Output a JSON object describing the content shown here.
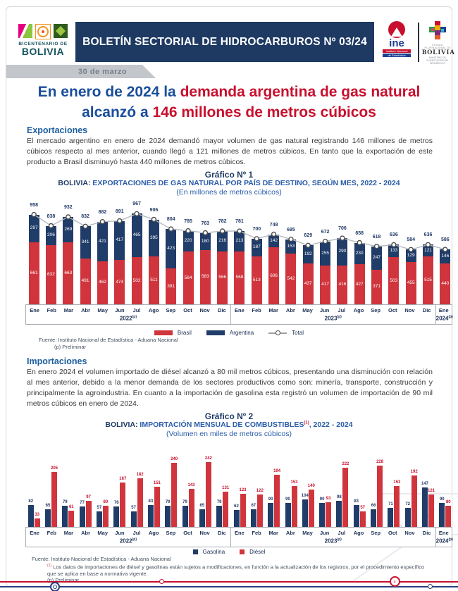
{
  "header": {
    "banner_title": "BOLETÍN SECTORIAL DE HIDROCARBUROS Nº 03/24",
    "date_ribbon": "30 de marzo",
    "bicentenario_line1": "BICENTENARIO DE",
    "bicentenario_line2": "BOLIVIA",
    "ine_name": "ine",
    "ine_sub1": "Instituto Nacional",
    "ine_sub2": "de Estadística",
    "bolivia_top": "ESTADO PLURINACIONAL DE",
    "bolivia_name": "BOLIVIA",
    "bolivia_sub": "MINISTERIO DE PLANIFICACIÓN DEL DESARROLLO"
  },
  "headline": {
    "line1_blue": "En enero de 2024 la ",
    "line1_red": "demanda argentina de gas natural",
    "line2_blue": "alcanzó a ",
    "line2_red": "146 millones de metros cúbicos"
  },
  "exportaciones": {
    "heading": "Exportaciones",
    "body": "El mercado argentino en enero de 2024 demandó mayor volumen de gas natural registrando 146 millones de metros cúbicos respecto al mes anterior, cuando llegó a 121 millones de metros cúbicos. En tanto que la exportación de este producto a Brasil disminuyó hasta 440 millones de metros cúbicos."
  },
  "importaciones": {
    "heading": "Importaciones",
    "body": "En enero 2024 el volumen importado de diésel alcanzó a 80 mil metros cúbicos, presentando una disminución con relación al mes anterior, debido a la menor demanda de los sectores productivos como son: minería, transporte, construcción y principalmente la agroindustria. En cuanto a la importación de gasolina esta registró un volumen de importación de 90 mil metros cúbicos en enero de 2024."
  },
  "colors": {
    "banner_navy": "#1e3a63",
    "bar_navy": "#203c68",
    "bar_red": "#d0353d",
    "headline_blue": "#1a4e9b",
    "headline_red": "#c8102e"
  },
  "chart_data": [
    {
      "type": "bar",
      "stacked": true,
      "title": "Gráfico Nº 1",
      "subtitle_prefix": "BOLIVIA:",
      "subtitle_rest": " EXPORTACIONES DE GAS NATURAL POR PAÍS DE DESTINO, SEGÚN MES, 2022 - 2024",
      "units": "(En millones de metros cúbicos)",
      "categories": [
        "Ene",
        "Feb",
        "Mar",
        "Abr",
        "May",
        "Jun",
        "Jul",
        "Ago",
        "Sep",
        "Oct",
        "Nov",
        "Dic",
        "Ene",
        "Feb",
        "Mar",
        "Abr",
        "May",
        "Jun",
        "Jul",
        "Ago",
        "Sep",
        "Oct",
        "Nov",
        "Dic",
        "Ene"
      ],
      "year_groups": [
        {
          "label": "2022",
          "sup": "(p)",
          "months": 12
        },
        {
          "label": "2023",
          "sup": "(p)",
          "months": 12
        },
        {
          "label": "2024",
          "sup": "(p)",
          "months": 1
        }
      ],
      "series": [
        {
          "name": "Brasil",
          "color": "#d0353d",
          "values": [
            661,
            632,
            663,
            491,
            462,
            474,
            502,
            511,
            381,
            564,
            583,
            566,
            568,
            513,
            606,
            542,
            437,
            417,
            416,
            427,
            371,
            503,
            455,
            515,
            440
          ]
        },
        {
          "name": "Argentina",
          "color": "#203c68",
          "values": [
            297,
            206,
            269,
            341,
            421,
            417,
            465,
            395,
            423,
            220,
            180,
            216,
            213,
            187,
            142,
            153,
            192,
            255,
            290,
            230,
            247,
            133,
            129,
            121,
            146
          ]
        }
      ],
      "totals": [
        958,
        838,
        932,
        832,
        882,
        891,
        967,
        906,
        804,
        785,
        763,
        782,
        781,
        700,
        748,
        695,
        629,
        672,
        706,
        658,
        618,
        636,
        584,
        636,
        586
      ],
      "total_series_name": "Total",
      "legend_position": "bottom",
      "ylim": [
        0,
        1000
      ],
      "source": "Fuente: Instituto Nacional de Estadística - Aduana Nacional",
      "source2": "(p) Preliminar"
    },
    {
      "type": "bar",
      "grouped": true,
      "title": "Gráfico Nº 2",
      "subtitle_prefix": "BOLIVIA:",
      "subtitle_rest": " IMPORTACIÓN MENSUAL DE COMBUSTIBLES",
      "subtitle_sup": "(1)",
      "subtitle_tail": ", 2022 - 2024",
      "units": "(Volumen en miles de metros cúbicos)",
      "categories": [
        "Ene",
        "Feb",
        "Mar",
        "Abr",
        "May",
        "Jun",
        "Jul",
        "Ago",
        "Sep",
        "Oct",
        "Nov",
        "Dic",
        "Ene",
        "Feb",
        "Mar",
        "Abr",
        "May",
        "Jun",
        "Jul",
        "Ago",
        "Sep",
        "Oct",
        "Nov",
        "Dic",
        "Ene"
      ],
      "year_groups": [
        {
          "label": "2022",
          "sup": "(p)",
          "months": 12
        },
        {
          "label": "2023",
          "sup": "(p)",
          "months": 12
        },
        {
          "label": "2024",
          "sup": "(p)",
          "months": 1
        }
      ],
      "series": [
        {
          "name": "Gasolina",
          "color": "#203c68",
          "values": [
            82,
            65,
            79,
            77,
            57,
            76,
            57,
            83,
            79,
            79,
            65,
            79,
            62,
            67,
            90,
            90,
            104,
            90,
            98,
            83,
            66,
            71,
            72,
            147,
            90
          ]
        },
        {
          "name": "Diésel",
          "color": "#d0353d",
          "values": [
            33,
            205,
            61,
            97,
            80,
            167,
            182,
            151,
            240,
            143,
            242,
            131,
            123,
            122,
            194,
            153,
            140,
            93,
            222,
            57,
            228,
            153,
            192,
            121,
            80
          ]
        }
      ],
      "legend_position": "bottom",
      "ylim": [
        0,
        260
      ],
      "source": "Fuente: Instituto Nacional de Estadística - Aduana Nacional",
      "footnote_sup": "(1)",
      "footnote": "Los datos de importaciones de diésel y gasolinas están sujetos a modificaciones, en función a la actualización de los registros, por el procedimiento específico que se aplica en base a normativa vigente.",
      "source2": "(p) Preliminar"
    }
  ]
}
